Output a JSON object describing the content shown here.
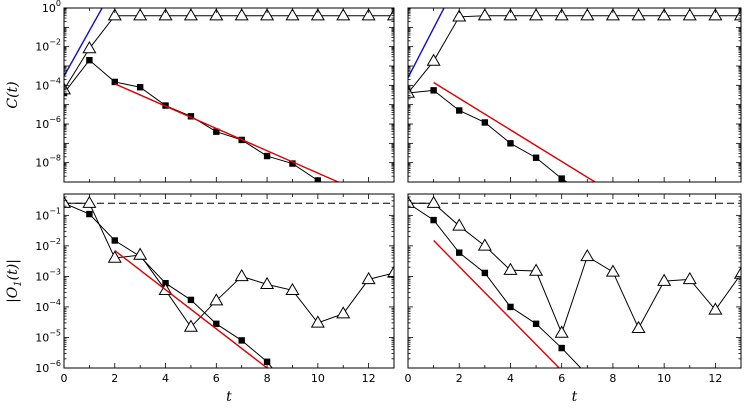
{
  "chart_data": [
    {
      "type": "line",
      "panel": "top-left",
      "ylabel": "C(t)",
      "xlabel": "",
      "yscale": "log",
      "xlim": [
        0,
        13
      ],
      "ylim": [
        1e-09,
        1
      ],
      "xticks": [
        0,
        2,
        4,
        6,
        8,
        10,
        12
      ],
      "xtick_labels": [],
      "yticks": [
        1e-08,
        1e-06,
        0.0001,
        0.01,
        1
      ],
      "ytick_labels": [
        "10^-8",
        "10^-6",
        "10^-4",
        "10^-2",
        "10^0"
      ],
      "series": [
        {
          "marker": "filled-square",
          "color": "#000000",
          "x": [
            0,
            1,
            2,
            3,
            4,
            5,
            6,
            7,
            8,
            9,
            10,
            11
          ],
          "y": [
            4e-05,
            0.002,
            0.00015,
            8e-05,
            9e-06,
            2.5e-06,
            4e-07,
            1.5e-07,
            2.2e-08,
            9e-09,
            1.2e-09,
            1e-10
          ]
        },
        {
          "marker": "open-triangle",
          "color": "#000000",
          "x": [
            0,
            1,
            2,
            3,
            4,
            5,
            6,
            7,
            8,
            9,
            10,
            11,
            12,
            13
          ],
          "y": [
            6e-05,
            0.008,
            0.4,
            0.4,
            0.4,
            0.4,
            0.4,
            0.4,
            0.4,
            0.4,
            0.4,
            0.4,
            0.4,
            0.4
          ]
        },
        {
          "marker": "none",
          "color": "#1010c8",
          "x": [
            0,
            1.55
          ],
          "y": [
            0.0003,
            1.3
          ]
        },
        {
          "marker": "none",
          "color": "#e00000",
          "x": [
            2,
            10.8
          ],
          "y": [
            0.00012,
            1e-09
          ]
        }
      ]
    },
    {
      "type": "line",
      "panel": "top-right",
      "xlabel": "",
      "ylabel": "",
      "yscale": "log",
      "xlim": [
        0,
        13
      ],
      "ylim": [
        1e-09,
        1
      ],
      "xticks": [
        0,
        2,
        4,
        6,
        8,
        10,
        12
      ],
      "xtick_labels": [],
      "yticks": [
        1e-08,
        1e-06,
        0.0001,
        0.01,
        1
      ],
      "ytick_labels": [],
      "series": [
        {
          "marker": "filled-square",
          "color": "#000000",
          "x": [
            0,
            1,
            2,
            3,
            4,
            5,
            6,
            7
          ],
          "y": [
            4e-05,
            5.5e-05,
            5e-06,
            1.2e-06,
            1e-07,
            1.8e-08,
            1.5e-09,
            2e-10
          ]
        },
        {
          "marker": "open-triangle",
          "color": "#000000",
          "x": [
            0,
            1,
            2,
            3,
            4,
            5,
            6,
            7,
            8,
            9,
            10,
            11,
            12,
            13
          ],
          "y": [
            4e-05,
            0.0018,
            0.35,
            0.4,
            0.4,
            0.4,
            0.4,
            0.4,
            0.4,
            0.4,
            0.4,
            0.4,
            0.4,
            0.4
          ]
        },
        {
          "marker": "none",
          "color": "#1010c8",
          "x": [
            0,
            1.45
          ],
          "y": [
            0.00025,
            1.3
          ]
        },
        {
          "marker": "none",
          "color": "#e00000",
          "x": [
            1,
            7.3
          ],
          "y": [
            0.00014,
            1e-09
          ]
        }
      ]
    },
    {
      "type": "line",
      "panel": "bottom-left",
      "ylabel": "|O_1(t)|",
      "xlabel": "t",
      "yscale": "log",
      "xlim": [
        0,
        13
      ],
      "ylim": [
        1e-06,
        0.5
      ],
      "xticks": [
        0,
        2,
        4,
        6,
        8,
        10,
        12
      ],
      "xtick_labels": [
        "0",
        "2",
        "4",
        "6",
        "8",
        "10",
        "12"
      ],
      "yticks": [
        1e-06,
        1e-05,
        0.0001,
        0.001,
        0.01,
        0.1
      ],
      "ytick_labels": [
        "10^-6",
        "10^-5",
        "10^-4",
        "10^-3",
        "10^-2",
        "10^-1"
      ],
      "hline": 0.25,
      "series": [
        {
          "marker": "filled-square",
          "color": "#000000",
          "x": [
            0,
            1,
            2,
            3,
            4,
            5,
            6,
            7,
            8,
            8.5
          ],
          "y": [
            0.25,
            0.11,
            0.015,
            0.0045,
            0.0006,
            0.00017,
            2.8e-05,
            8e-06,
            1.6e-06,
            5e-07
          ]
        },
        {
          "marker": "open-triangle",
          "color": "#000000",
          "x": [
            0,
            1,
            2,
            3,
            4,
            5,
            6,
            7,
            8,
            9,
            10,
            11,
            12,
            13
          ],
          "y": [
            0.25,
            0.25,
            0.004,
            0.005,
            0.00035,
            2.2e-05,
            0.00016,
            0.001,
            0.00055,
            0.00035,
            3e-05,
            6e-05,
            0.0008,
            0.0013
          ]
        },
        {
          "marker": "none",
          "color": "#e00000",
          "x": [
            2,
            8
          ],
          "y": [
            0.007,
            1e-06
          ]
        }
      ]
    },
    {
      "type": "line",
      "panel": "bottom-right",
      "xlabel": "t",
      "ylabel": "",
      "yscale": "log",
      "xlim": [
        0,
        13
      ],
      "ylim": [
        1e-06,
        0.5
      ],
      "xticks": [
        0,
        2,
        4,
        6,
        8,
        10,
        12
      ],
      "xtick_labels": [
        "0",
        "2",
        "4",
        "6",
        "8",
        "10",
        "12"
      ],
      "yticks": [
        1e-06,
        1e-05,
        0.0001,
        0.001,
        0.01,
        0.1
      ],
      "ytick_labels": [],
      "hline": 0.25,
      "series": [
        {
          "marker": "filled-square",
          "color": "#000000",
          "x": [
            0,
            1,
            2,
            3,
            4,
            5,
            6,
            7
          ],
          "y": [
            0.25,
            0.07,
            0.006,
            0.0013,
            0.0001,
            2.8e-05,
            4.5e-06,
            6e-07
          ]
        },
        {
          "marker": "open-triangle",
          "color": "#000000",
          "x": [
            0,
            1,
            2,
            3,
            4,
            5,
            6,
            7,
            8,
            9,
            10,
            11,
            12,
            13
          ],
          "y": [
            0.25,
            0.25,
            0.045,
            0.01,
            0.0016,
            0.0015,
            1.4e-05,
            0.0045,
            0.0014,
            2e-05,
            0.0007,
            0.0008,
            8e-05,
            0.0012
          ]
        },
        {
          "marker": "none",
          "color": "#e00000",
          "x": [
            1,
            5.9
          ],
          "y": [
            0.015,
            1e-06
          ]
        }
      ]
    }
  ]
}
